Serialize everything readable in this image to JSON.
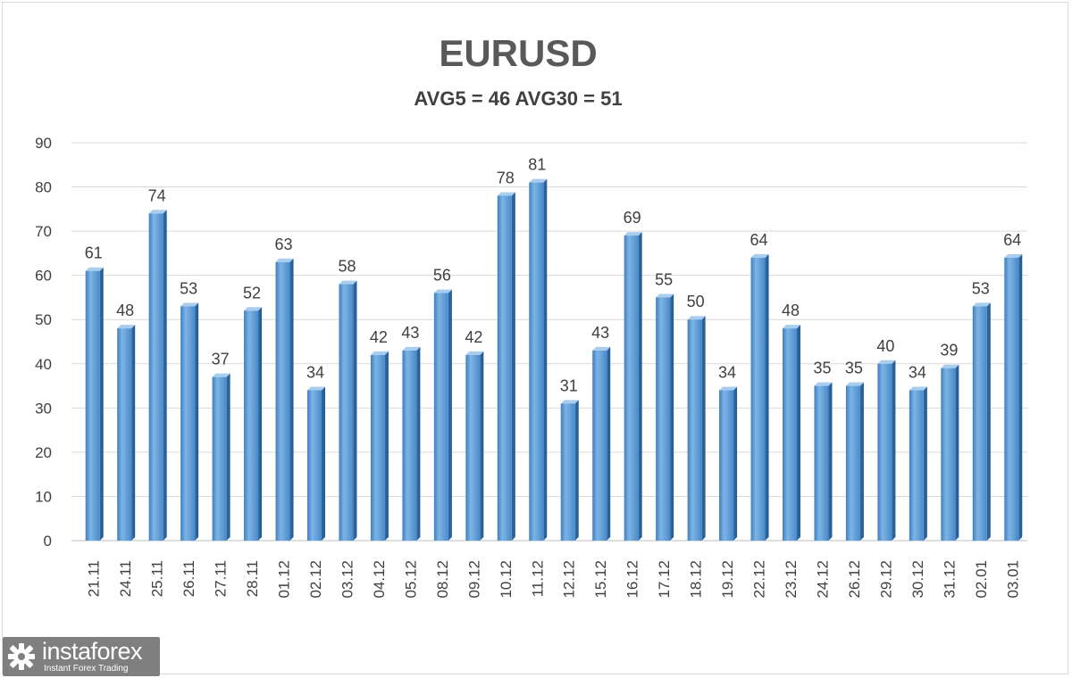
{
  "chart_data": {
    "type": "bar",
    "title": "EURUSD",
    "subtitle": "AVG5 = 46 AVG30 = 51",
    "categories": [
      "21.11",
      "24.11",
      "25.11",
      "26.11",
      "27.11",
      "28.11",
      "01.12",
      "02.12",
      "03.12",
      "04.12",
      "05.12",
      "08.12",
      "09.12",
      "10.12",
      "11.12",
      "12.12",
      "15.12",
      "16.12",
      "17.12",
      "18.12",
      "19.12",
      "22.12",
      "23.12",
      "24.12",
      "26.12",
      "29.12",
      "30.12",
      "31.12",
      "02.01",
      "03.01"
    ],
    "values": [
      61,
      48,
      74,
      53,
      37,
      52,
      63,
      34,
      58,
      42,
      43,
      56,
      42,
      78,
      81,
      31,
      43,
      69,
      55,
      50,
      34,
      64,
      48,
      35,
      35,
      40,
      34,
      39,
      53,
      64
    ],
    "ylim": [
      0,
      90
    ],
    "yticks": [
      0,
      10,
      20,
      30,
      40,
      50,
      60,
      70,
      80,
      90
    ],
    "grid": true,
    "bar_color": "#5b9bd5",
    "xlabel": "",
    "ylabel": ""
  },
  "logo": {
    "name": "instaforex",
    "tagline": "Instant Forex Trading"
  }
}
